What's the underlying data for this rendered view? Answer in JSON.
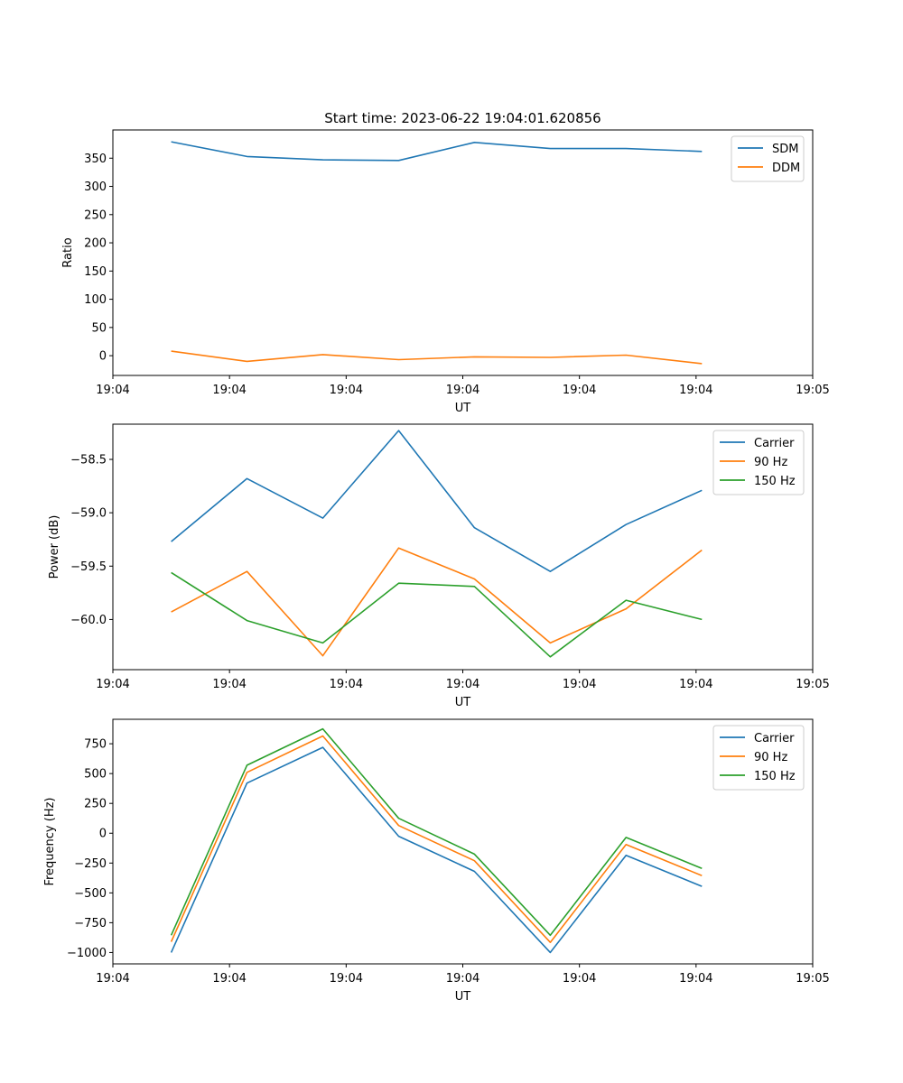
{
  "figure_title": "Start time: 2023-06-22 19:04:01.620856",
  "chart_data": [
    {
      "type": "line",
      "title": "Start time: 2023-06-22 19:04:01.620856",
      "xlabel": "UT",
      "ylabel": "Ratio",
      "x_tick_labels": [
        "19:04",
        "19:04",
        "19:04",
        "19:04",
        "19:04",
        "19:04",
        "19:05"
      ],
      "xlim": [
        0,
        6
      ],
      "x": [
        0.5,
        1.15,
        1.8,
        2.45,
        3.1,
        3.75,
        4.4,
        5.05
      ],
      "ylim": [
        -35,
        400
      ],
      "y_ticks": [
        0,
        50,
        100,
        150,
        200,
        250,
        300,
        350
      ],
      "legend": "top-right",
      "series": [
        {
          "name": "SDM",
          "color": "#1f77b4",
          "values": [
            379,
            353,
            347,
            346,
            378,
            367,
            367,
            362
          ]
        },
        {
          "name": "DDM",
          "color": "#ff7f0e",
          "values": [
            8,
            -10,
            2,
            -7,
            -2,
            -3,
            1,
            -14
          ]
        }
      ]
    },
    {
      "type": "line",
      "xlabel": "UT",
      "ylabel": "Power (dB)",
      "x_tick_labels": [
        "19:04",
        "19:04",
        "19:04",
        "19:04",
        "19:04",
        "19:04",
        "19:05"
      ],
      "xlim": [
        0,
        6
      ],
      "x": [
        0.5,
        1.15,
        1.8,
        2.45,
        3.1,
        3.75,
        4.4,
        5.05
      ],
      "ylim": [
        -60.47,
        -58.17
      ],
      "y_ticks": [
        -60.0,
        -59.5,
        -59.0,
        -58.5
      ],
      "y_tick_labels": [
        "−60.0",
        "−59.5",
        "−59.0",
        "−58.5"
      ],
      "legend": "top-right",
      "series": [
        {
          "name": "Carrier",
          "color": "#1f77b4",
          "values": [
            -59.27,
            -58.68,
            -59.05,
            -58.23,
            -59.14,
            -59.55,
            -59.11,
            -58.79
          ]
        },
        {
          "name": "90 Hz",
          "color": "#ff7f0e",
          "values": [
            -59.93,
            -59.55,
            -60.34,
            -59.33,
            -59.62,
            -60.22,
            -59.9,
            -59.35
          ]
        },
        {
          "name": "150 Hz",
          "color": "#2ca02c",
          "values": [
            -59.56,
            -60.01,
            -60.22,
            -59.66,
            -59.69,
            -60.35,
            -59.82,
            -60.0
          ]
        }
      ]
    },
    {
      "type": "line",
      "xlabel": "UT",
      "ylabel": "Frequency (Hz)",
      "x_tick_labels": [
        "19:04",
        "19:04",
        "19:04",
        "19:04",
        "19:04",
        "19:04",
        "19:05"
      ],
      "xlim": [
        0,
        6
      ],
      "x": [
        0.5,
        1.15,
        1.8,
        2.45,
        3.1,
        3.75,
        4.4,
        5.05
      ],
      "ylim": [
        -1095,
        955
      ],
      "y_ticks": [
        -1000,
        -750,
        -500,
        -250,
        0,
        250,
        500,
        750
      ],
      "y_tick_labels": [
        "−1000",
        "−750",
        "−500",
        "−250",
        "0",
        "250",
        "500",
        "750"
      ],
      "legend": "top-right",
      "series": [
        {
          "name": "Carrier",
          "color": "#1f77b4",
          "values": [
            -1000,
            420,
            720,
            -25,
            -320,
            -1000,
            -185,
            -445
          ]
        },
        {
          "name": "90 Hz",
          "color": "#ff7f0e",
          "values": [
            -910,
            510,
            815,
            65,
            -230,
            -915,
            -95,
            -355
          ]
        },
        {
          "name": "150 Hz",
          "color": "#2ca02c",
          "values": [
            -855,
            570,
            875,
            125,
            -175,
            -855,
            -35,
            -295
          ]
        }
      ]
    }
  ]
}
